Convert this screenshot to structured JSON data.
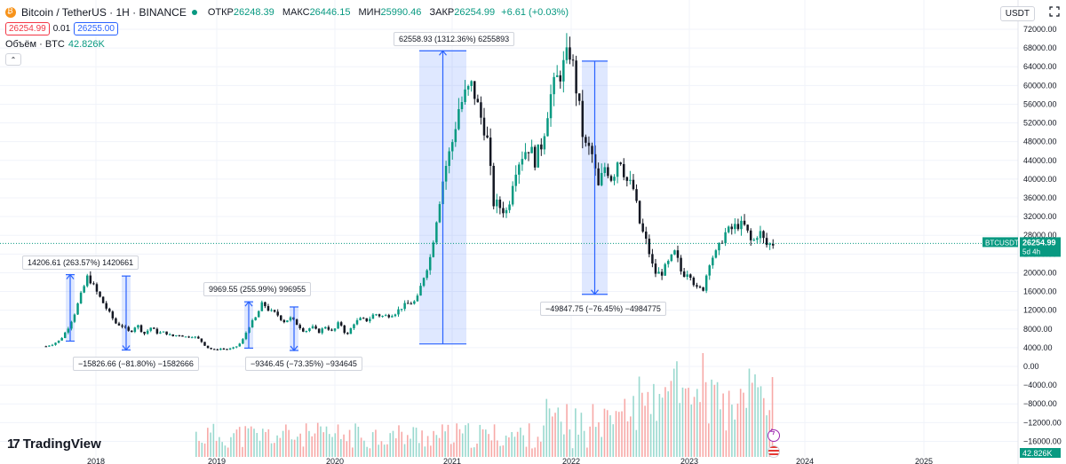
{
  "legend": {
    "symbol": "Bitcoin / TetherUS · 1H · BINANCE",
    "open_label": "ОТКР",
    "open": "26248.39",
    "high_label": "МАКС",
    "high": "26446.15",
    "low_label": "МИН",
    "low": "25990.46",
    "close_label": "ЗАКР",
    "close": "26254.99",
    "change": "+6.61 (+0.03%)",
    "bid": "26254.99",
    "spread": "0.01",
    "ask": "26255.00",
    "volume_label": "Объём · BTC",
    "volume": "42.826K"
  },
  "currency": "USDT",
  "logo": "TradingView",
  "price_axis": {
    "labels": [
      "72000.00",
      "68000.00",
      "64000.00",
      "60000.00",
      "56000.00",
      "52000.00",
      "48000.00",
      "44000.00",
      "40000.00",
      "36000.00",
      "32000.00",
      "28000.00",
      "24000.00",
      "20000.00",
      "16000.00",
      "12000.00",
      "8000.00",
      "4000.00",
      "0.00",
      "−4000.00",
      "−8000.00",
      "−12000.00",
      "−16000.00"
    ],
    "values": [
      72000,
      68000,
      64000,
      60000,
      56000,
      52000,
      48000,
      44000,
      40000,
      36000,
      32000,
      28000,
      24000,
      20000,
      16000,
      12000,
      8000,
      4000,
      0,
      -4000,
      -8000,
      -12000,
      -16000
    ],
    "last_symbol": "BTCUSDT",
    "last_price": "26254.99",
    "countdown": "5d 4h",
    "volume_tag": "42.826K"
  },
  "time_axis": {
    "labels": [
      "2018",
      "2019",
      "2020",
      "2021",
      "2022",
      "2023",
      "2024",
      "2025"
    ]
  },
  "annotations": [
    {
      "text": "14206.61 (263.57%) 1420661"
    },
    {
      "text": "−15826.66 (−81.80%) −1582666"
    },
    {
      "text": "9969.55 (255.99%) 996955"
    },
    {
      "text": "−9346.45 (−73.35%) −934645"
    },
    {
      "text": "62558.93 (1312.36%) 6255893"
    },
    {
      "text": "−49847.75 (−76.45%) −4984775"
    }
  ],
  "chart_data": {
    "type": "candlestick",
    "series_name": "BTCUSDT",
    "y_range": [
      -16000,
      72000
    ],
    "ranges": [
      {
        "from": 5400,
        "to": 19600,
        "direction": "up"
      },
      {
        "from": 19300,
        "to": 3500,
        "direction": "down"
      },
      {
        "from": 3900,
        "to": 13800,
        "direction": "up"
      },
      {
        "from": 12700,
        "to": 3400,
        "direction": "down"
      },
      {
        "from": 4800,
        "to": 67400,
        "direction": "up"
      },
      {
        "from": 65200,
        "to": 15400,
        "direction": "down"
      }
    ],
    "price_path": [
      4300,
      4800,
      5600,
      7800,
      11000,
      15200,
      19400,
      16500,
      14000,
      11500,
      9200,
      8600,
      7200,
      9000,
      6900,
      8300,
      7100,
      7300,
      6400,
      6800,
      6300,
      6500,
      5700,
      4100,
      3500,
      3800,
      3600,
      4000,
      5200,
      8500,
      10400,
      13600,
      11800,
      11200,
      9600,
      10300,
      8900,
      7400,
      8500,
      7300,
      8600,
      7300,
      9600,
      6400,
      9200,
      10100,
      9800,
      11300,
      10700,
      10900,
      11500,
      12800,
      13500,
      13900,
      19100,
      23500,
      33000,
      41800,
      47000,
      55000,
      58000,
      60000,
      54000,
      50000,
      35000,
      34000,
      33000,
      42000,
      45000,
      47000,
      44000,
      48000,
      57000,
      61000,
      64000,
      67500,
      58000,
      47000,
      46000,
      38000,
      43000,
      40000,
      45500,
      39800,
      38000,
      30000,
      26000,
      20000,
      19800,
      22000,
      24400,
      19500,
      20500,
      16500,
      16600,
      23000,
      24300,
      28300,
      29200,
      30300,
      29800,
      26100,
      29000,
      25900,
      26255
    ],
    "volume_range": [
      0,
      15000
    ]
  }
}
